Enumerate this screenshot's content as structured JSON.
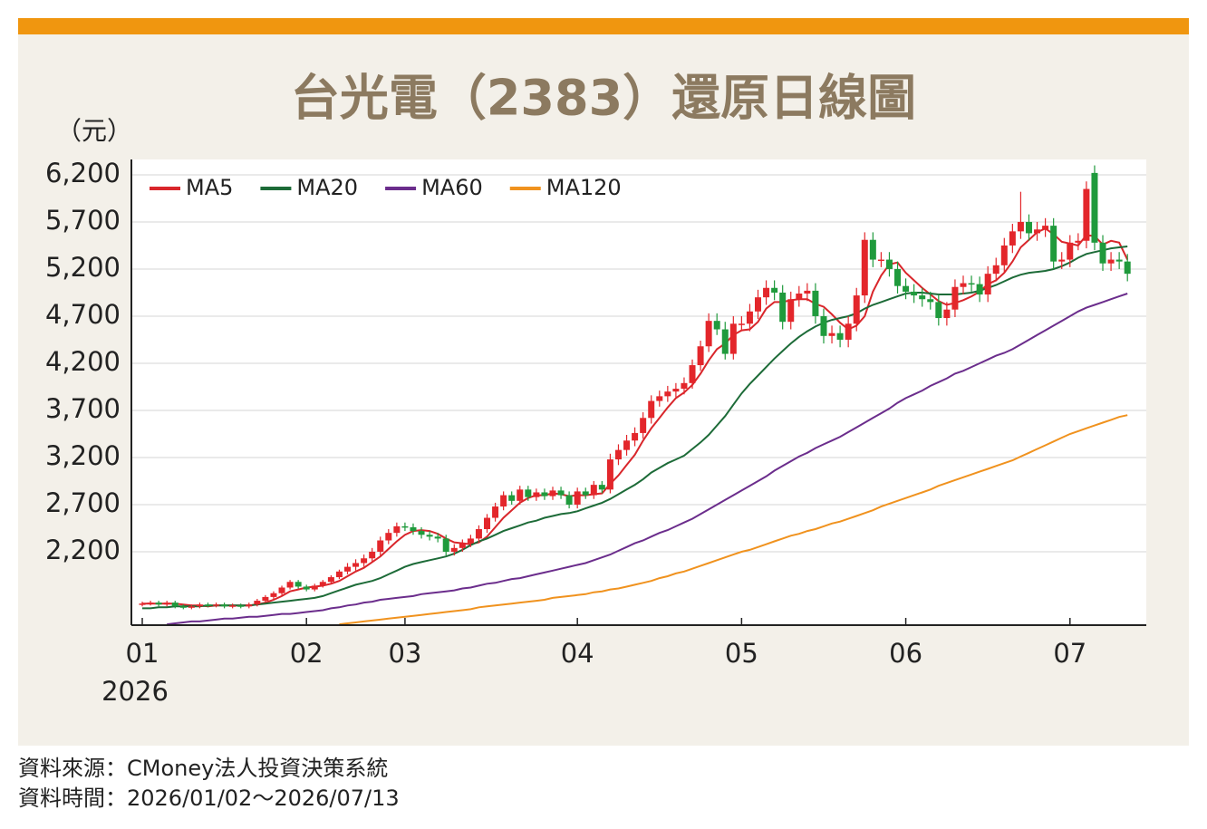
{
  "chart_data": {
    "type": "candlestick",
    "title": "台光電（2383）還原日線圖",
    "y_label": "（元）",
    "x_year": "2026",
    "source": "資料來源：CMoney法人投資決策系統",
    "period": "資料時間：2026/01/02～2026/07/13",
    "up_color": "#e3262b",
    "down_color": "#1f9a3c",
    "categories": [
      "01",
      null,
      null,
      null,
      null,
      null,
      null,
      null,
      null,
      null,
      null,
      null,
      null,
      null,
      null,
      null,
      null,
      null,
      null,
      null,
      "02",
      null,
      null,
      null,
      null,
      null,
      null,
      null,
      null,
      null,
      null,
      null,
      "03",
      null,
      null,
      null,
      null,
      null,
      null,
      null,
      null,
      null,
      null,
      null,
      null,
      null,
      null,
      null,
      null,
      null,
      null,
      null,
      null,
      "04",
      null,
      null,
      null,
      null,
      null,
      null,
      null,
      null,
      null,
      null,
      null,
      null,
      null,
      null,
      null,
      null,
      null,
      null,
      null,
      "05",
      null,
      null,
      null,
      null,
      null,
      null,
      null,
      null,
      null,
      null,
      null,
      null,
      null,
      null,
      null,
      null,
      null,
      null,
      null,
      "06",
      null,
      null,
      null,
      null,
      null,
      null,
      null,
      null,
      null,
      null,
      null,
      null,
      null,
      null,
      null,
      null,
      null,
      null,
      null,
      "07",
      null,
      null,
      null,
      null,
      null,
      null,
      null
    ],
    "open": [
      1640,
      1650,
      1660,
      1640,
      1660,
      1620,
      1610,
      1620,
      1640,
      1630,
      1640,
      1620,
      1630,
      1620,
      1640,
      1680,
      1720,
      1760,
      1820,
      1880,
      1830,
      1800,
      1840,
      1880,
      1930,
      1990,
      2040,
      2080,
      2130,
      2200,
      2320,
      2400,
      2470,
      2460,
      2420,
      2380,
      2360,
      2340,
      2200,
      2240,
      2290,
      2340,
      2440,
      2560,
      2680,
      2800,
      2740,
      2860,
      2780,
      2830,
      2790,
      2850,
      2800,
      2700,
      2840,
      2800,
      2910,
      2860,
      3180,
      3280,
      3380,
      3460,
      3620,
      3800,
      3850,
      3900,
      3930,
      3990,
      4180,
      4380,
      4650,
      4560,
      4300,
      4620,
      4620,
      4750,
      4900,
      5000,
      4950,
      4640,
      4880,
      4940,
      4970,
      4700,
      4490,
      4520,
      4450,
      4620,
      4920,
      5510,
      5300,
      5300,
      5200,
      5020,
      4960,
      4920,
      4880,
      4850,
      4680,
      4770,
      5010,
      5050,
      5040,
      4930,
      5150,
      5240,
      5450,
      5600,
      5700,
      5580,
      5620,
      5660,
      5280,
      5300,
      5480,
      5500,
      6220,
      5480,
      5260,
      5300,
      5280
    ],
    "high": [
      1670,
      1680,
      1680,
      1680,
      1680,
      1640,
      1640,
      1660,
      1660,
      1660,
      1660,
      1650,
      1650,
      1660,
      1700,
      1740,
      1780,
      1840,
      1900,
      1900,
      1850,
      1860,
      1900,
      1950,
      2010,
      2080,
      2120,
      2170,
      2240,
      2360,
      2440,
      2510,
      2510,
      2500,
      2460,
      2420,
      2400,
      2380,
      2280,
      2330,
      2380,
      2480,
      2600,
      2720,
      2840,
      2840,
      2900,
      2900,
      2870,
      2870,
      2890,
      2890,
      2840,
      2880,
      2880,
      2950,
      2950,
      3240,
      3340,
      3440,
      3520,
      3680,
      3860,
      3910,
      3960,
      3990,
      4050,
      4240,
      4440,
      4730,
      4730,
      4640,
      4700,
      4700,
      4830,
      4980,
      5080,
      5080,
      5030,
      4960,
      5020,
      5050,
      5050,
      4780,
      4600,
      4600,
      4700,
      5000,
      5590,
      5590,
      5380,
      5380,
      5280,
      5100,
      5040,
      5000,
      4960,
      4930,
      4850,
      5090,
      5130,
      5130,
      5120,
      5230,
      5320,
      5530,
      5680,
      6020,
      5780,
      5700,
      5740,
      5740,
      5380,
      5560,
      5580,
      6130,
      6300,
      5560,
      5380,
      5380,
      5360
    ],
    "low": [
      1620,
      1630,
      1620,
      1620,
      1600,
      1590,
      1590,
      1600,
      1610,
      1610,
      1600,
      1600,
      1600,
      1600,
      1620,
      1660,
      1700,
      1740,
      1800,
      1810,
      1780,
      1780,
      1820,
      1860,
      1910,
      1960,
      2000,
      2040,
      2090,
      2160,
      2280,
      2360,
      2420,
      2380,
      2340,
      2320,
      2300,
      2160,
      2160,
      2200,
      2250,
      2300,
      2400,
      2520,
      2640,
      2700,
      2700,
      2740,
      2740,
      2750,
      2750,
      2760,
      2660,
      2660,
      2760,
      2760,
      2820,
      2820,
      3120,
      3220,
      3320,
      3400,
      3560,
      3740,
      3790,
      3840,
      3870,
      3930,
      4120,
      4320,
      4500,
      4240,
      4240,
      4540,
      4540,
      4670,
      4820,
      4870,
      4560,
      4560,
      4800,
      4860,
      4620,
      4410,
      4410,
      4370,
      4370,
      4540,
      4840,
      5220,
      5220,
      5120,
      4940,
      4880,
      4840,
      4800,
      4770,
      4600,
      4600,
      4690,
      4930,
      4960,
      4850,
      4850,
      5070,
      5160,
      5370,
      5520,
      5500,
      5500,
      5540,
      5200,
      5200,
      5220,
      5400,
      5420,
      5400,
      5180,
      5180,
      5200,
      5070
    ],
    "close": [
      1650,
      1660,
      1640,
      1660,
      1620,
      1610,
      1620,
      1640,
      1630,
      1640,
      1620,
      1630,
      1620,
      1640,
      1680,
      1720,
      1760,
      1820,
      1880,
      1830,
      1800,
      1840,
      1880,
      1930,
      1990,
      2040,
      2080,
      2130,
      2200,
      2320,
      2400,
      2470,
      2460,
      2420,
      2380,
      2360,
      2340,
      2200,
      2240,
      2290,
      2340,
      2440,
      2560,
      2680,
      2800,
      2740,
      2860,
      2780,
      2830,
      2790,
      2850,
      2800,
      2700,
      2840,
      2800,
      2910,
      2860,
      3180,
      3280,
      3380,
      3460,
      3620,
      3800,
      3850,
      3900,
      3930,
      3990,
      4180,
      4380,
      4650,
      4560,
      4300,
      4620,
      4620,
      4750,
      4900,
      5000,
      4950,
      4640,
      4880,
      4940,
      4970,
      4700,
      4490,
      4520,
      4450,
      4620,
      4920,
      5510,
      5300,
      5300,
      5200,
      5020,
      4960,
      4920,
      4880,
      4850,
      4680,
      4770,
      5010,
      5050,
      5040,
      4930,
      5150,
      5240,
      5450,
      5600,
      5700,
      5580,
      5620,
      5660,
      5280,
      5300,
      5480,
      5500,
      6050,
      5480,
      5260,
      5300,
      5280,
      5150
    ],
    "series": [
      {
        "name": "MA5",
        "color": "#d9262b",
        "values": [
          1650,
          1650,
          1650,
          1650,
          1650,
          1640,
          1630,
          1630,
          1620,
          1630,
          1630,
          1630,
          1630,
          1630,
          1640,
          1660,
          1690,
          1730,
          1780,
          1800,
          1820,
          1830,
          1840,
          1860,
          1890,
          1940,
          1990,
          2030,
          2090,
          2150,
          2230,
          2310,
          2380,
          2420,
          2430,
          2420,
          2390,
          2340,
          2300,
          2290,
          2280,
          2300,
          2360,
          2460,
          2560,
          2640,
          2720,
          2770,
          2800,
          2800,
          2820,
          2810,
          2790,
          2800,
          2800,
          2810,
          2820,
          2920,
          3010,
          3120,
          3230,
          3380,
          3510,
          3620,
          3730,
          3830,
          3890,
          3970,
          4090,
          4230,
          4350,
          4410,
          4500,
          4550,
          4560,
          4640,
          4780,
          4850,
          4850,
          4870,
          4880,
          4880,
          4830,
          4800,
          4720,
          4630,
          4560,
          4600,
          4700,
          4960,
          5130,
          5250,
          5270,
          5160,
          5080,
          5000,
          4930,
          4860,
          4820,
          4840,
          4870,
          4910,
          4960,
          5040,
          5080,
          5160,
          5280,
          5430,
          5510,
          5590,
          5630,
          5570,
          5490,
          5470,
          5450,
          5560,
          5550,
          5460,
          5500,
          5480,
          5300
        ]
      },
      {
        "name": "MA20",
        "color": "#1d6b38",
        "values": [
          1600,
          1600,
          1610,
          1610,
          1620,
          1620,
          1620,
          1620,
          1630,
          1630,
          1630,
          1630,
          1630,
          1630,
          1640,
          1650,
          1660,
          1670,
          1680,
          1690,
          1700,
          1710,
          1730,
          1760,
          1790,
          1820,
          1850,
          1870,
          1890,
          1920,
          1960,
          2000,
          2040,
          2070,
          2090,
          2110,
          2130,
          2150,
          2180,
          2220,
          2270,
          2310,
          2340,
          2380,
          2420,
          2450,
          2480,
          2510,
          2530,
          2560,
          2580,
          2600,
          2610,
          2630,
          2660,
          2690,
          2720,
          2760,
          2810,
          2860,
          2910,
          2970,
          3040,
          3090,
          3140,
          3180,
          3220,
          3290,
          3360,
          3440,
          3540,
          3640,
          3760,
          3880,
          3980,
          4070,
          4160,
          4250,
          4330,
          4410,
          4480,
          4540,
          4590,
          4630,
          4660,
          4680,
          4700,
          4730,
          4780,
          4820,
          4850,
          4880,
          4910,
          4940,
          4950,
          4950,
          4940,
          4930,
          4930,
          4930,
          4940,
          4950,
          4970,
          5000,
          5030,
          5070,
          5110,
          5140,
          5160,
          5170,
          5180,
          5200,
          5230,
          5270,
          5320,
          5360,
          5380,
          5400,
          5420,
          5430,
          5440
        ]
      },
      {
        "name": "MA60",
        "color": "#6b2d8c",
        "values": [
          null,
          null,
          null,
          1430,
          1440,
          1450,
          1460,
          1460,
          1470,
          1480,
          1490,
          1490,
          1500,
          1510,
          1510,
          1520,
          1530,
          1540,
          1540,
          1550,
          1560,
          1570,
          1580,
          1600,
          1610,
          1630,
          1640,
          1660,
          1670,
          1690,
          1700,
          1710,
          1720,
          1730,
          1750,
          1760,
          1770,
          1780,
          1790,
          1810,
          1820,
          1840,
          1860,
          1870,
          1890,
          1910,
          1920,
          1940,
          1960,
          1980,
          2000,
          2020,
          2040,
          2060,
          2080,
          2110,
          2140,
          2170,
          2210,
          2250,
          2290,
          2320,
          2360,
          2400,
          2430,
          2470,
          2510,
          2550,
          2600,
          2650,
          2700,
          2750,
          2800,
          2850,
          2900,
          2950,
          3000,
          3060,
          3110,
          3160,
          3210,
          3250,
          3300,
          3340,
          3380,
          3420,
          3470,
          3520,
          3570,
          3620,
          3670,
          3720,
          3780,
          3830,
          3870,
          3910,
          3960,
          4000,
          4040,
          4090,
          4120,
          4160,
          4200,
          4240,
          4280,
          4310,
          4350,
          4400,
          4450,
          4500,
          4550,
          4600,
          4650,
          4700,
          4750,
          4790,
          4820,
          4850,
          4880,
          4910,
          4940
        ]
      },
      {
        "name": "MA120",
        "color": "#f0921e",
        "values": [
          null,
          null,
          null,
          null,
          null,
          null,
          null,
          null,
          null,
          null,
          null,
          null,
          null,
          null,
          null,
          null,
          null,
          null,
          null,
          null,
          null,
          null,
          null,
          null,
          1430,
          1440,
          1450,
          1460,
          1470,
          1480,
          1490,
          1500,
          1510,
          1520,
          1530,
          1540,
          1550,
          1560,
          1570,
          1580,
          1590,
          1610,
          1620,
          1630,
          1640,
          1650,
          1660,
          1670,
          1680,
          1690,
          1710,
          1720,
          1730,
          1740,
          1750,
          1770,
          1780,
          1800,
          1810,
          1830,
          1850,
          1870,
          1890,
          1920,
          1940,
          1970,
          1990,
          2020,
          2050,
          2080,
          2110,
          2140,
          2170,
          2200,
          2220,
          2250,
          2280,
          2310,
          2340,
          2370,
          2390,
          2420,
          2440,
          2470,
          2500,
          2520,
          2550,
          2580,
          2610,
          2640,
          2680,
          2710,
          2740,
          2770,
          2800,
          2830,
          2860,
          2900,
          2930,
          2960,
          2990,
          3020,
          3050,
          3080,
          3110,
          3140,
          3170,
          3210,
          3250,
          3290,
          3330,
          3370,
          3410,
          3450,
          3480,
          3510,
          3540,
          3570,
          3600,
          3630,
          3650
        ]
      }
    ],
    "ylim": [
      1421,
      6363
    ],
    "yticks": [
      {
        "value": 2200,
        "label": "2,200"
      },
      {
        "value": 2700,
        "label": "2,700"
      },
      {
        "value": 3200,
        "label": "3,200"
      },
      {
        "value": 3700,
        "label": "3,700"
      },
      {
        "value": 4200,
        "label": "4,200"
      },
      {
        "value": 4700,
        "label": "4,700"
      },
      {
        "value": 5200,
        "label": "5,200"
      },
      {
        "value": 5700,
        "label": "5,700"
      },
      {
        "value": 6200,
        "label": "6,200"
      }
    ],
    "grid": true,
    "legend": "top-left"
  }
}
